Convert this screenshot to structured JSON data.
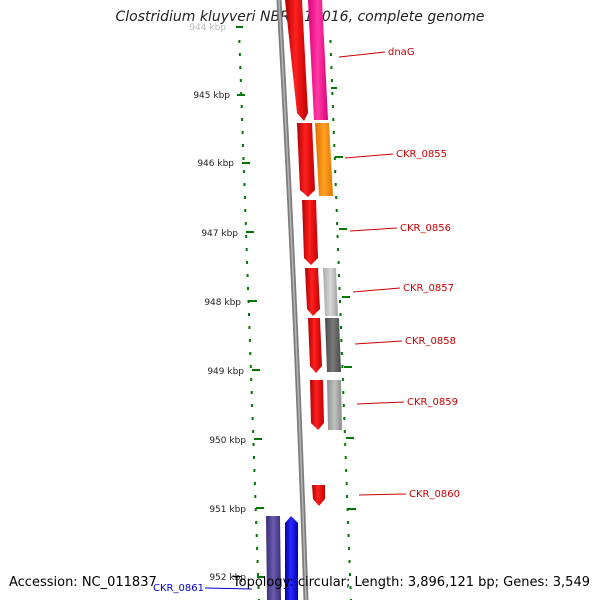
{
  "title": "Clostridium kluyveri NBRC 12016, complete genome",
  "accession": "Accession: NC_011837",
  "topology": "Topology: circular; Length: 3,896,121 bp; Genes: 3,549",
  "scale": {
    "tick_labels": [
      "944 kbp",
      "945 kbp",
      "946 kbp",
      "947 kbp",
      "948 kbp",
      "949 kbp",
      "950 kbp",
      "951 kbp",
      "952 kbp"
    ]
  },
  "genes": [
    {
      "name": "dnaG",
      "color": "#cc0000"
    },
    {
      "name": "CKR_0855",
      "color": "#cc0000"
    },
    {
      "name": "CKR_0856",
      "color": "#cc0000"
    },
    {
      "name": "CKR_0857",
      "color": "#cc0000"
    },
    {
      "name": "CKR_0858",
      "color": "#cc0000"
    },
    {
      "name": "CKR_0859",
      "color": "#cc0000"
    },
    {
      "name": "CKR_0860",
      "color": "#cc0000"
    },
    {
      "name": "CKR_0861",
      "color": "#0000cc"
    }
  ],
  "colors": {
    "forward_cds": "#ff0000",
    "reverse_cds": "#0000ff",
    "backbone": "#808080",
    "ticks": "#007700",
    "cog_pink": "#ff2a9c",
    "cog_orange": "#ff8c00",
    "cog_lightgray": "#bdbdbd",
    "cog_darkgray": "#666666",
    "cog_purple": "#4b3c8c"
  }
}
